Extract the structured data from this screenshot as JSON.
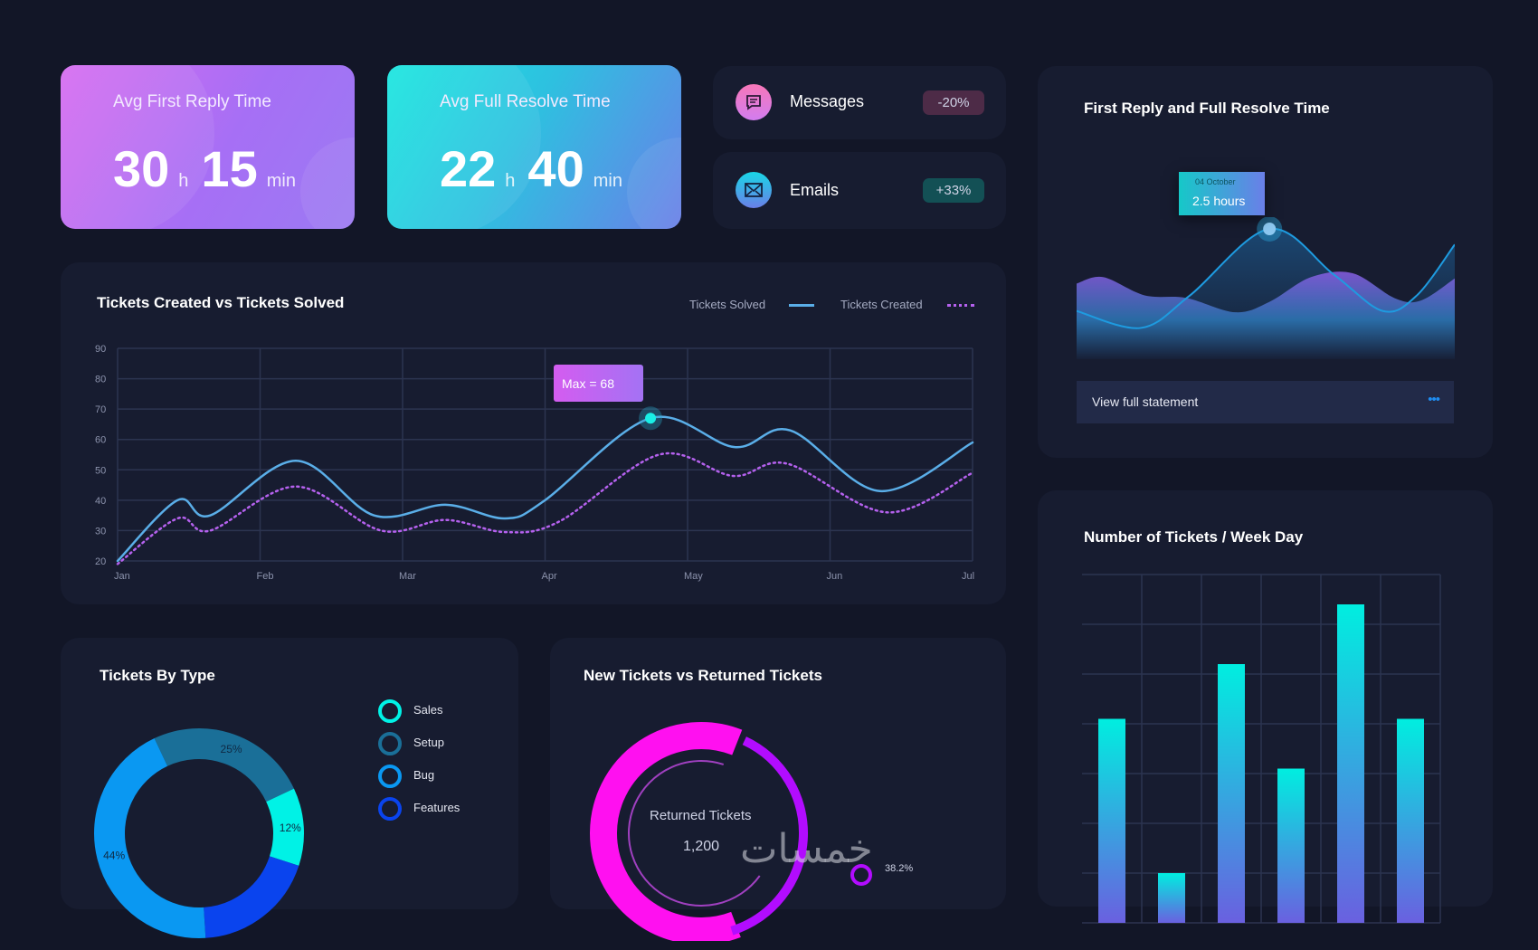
{
  "cards": {
    "first_reply": {
      "title": "Avg First Reply Time",
      "hours": "30",
      "h": "h",
      "minutes": "15",
      "min": "min"
    },
    "full_resolve": {
      "title": "Avg Full Resolve Time",
      "hours": "22",
      "h": "h",
      "minutes": "40",
      "min": "min"
    }
  },
  "mini": [
    {
      "label": "Messages",
      "change": "-20%",
      "icon": "message-icon",
      "color": "#f06fc0",
      "badge_bg": "#4d2b47"
    },
    {
      "label": "Emails",
      "change": "+33%",
      "icon": "mail-icon",
      "color": "#19c6e6",
      "badge_bg": "#135055"
    }
  ],
  "reply_resolve": {
    "title": "First Reply and Full Resolve Time",
    "tooltip_date": "04 October",
    "tooltip_value": "2.5 hours",
    "statement": "View full statement",
    "more": "•••"
  },
  "watermark": "خمسات",
  "chart_data": [
    {
      "type": "line",
      "title": "Tickets Created vs Tickets Solved",
      "xlabel": "",
      "ylabel": "",
      "categories": [
        "Jan",
        "Feb",
        "Mar",
        "Apr",
        "May",
        "Jun",
        "Jul"
      ],
      "yticks": [
        "90",
        "80",
        "70",
        "60",
        "50",
        "40",
        "30",
        "20"
      ],
      "ylim": [
        20,
        90
      ],
      "grid": true,
      "legend": "top-right",
      "annotation": "Max = 68",
      "series": [
        {
          "name": "Tickets Solved",
          "color": "#5aaee8",
          "style": "solid",
          "x": [
            0,
            0.42,
            0.65,
            1.25,
            1.8,
            2.3,
            2.72,
            3,
            3.74,
            4.33,
            4.72,
            5.35,
            6
          ],
          "y": [
            20,
            40,
            35,
            53,
            35,
            38.5,
            34,
            40,
            67,
            57.5,
            63,
            43,
            59
          ]
        },
        {
          "name": "Tickets Created",
          "color": "#b561ee",
          "style": "dotted",
          "x": [
            0,
            0.42,
            0.65,
            1.25,
            1.85,
            2.3,
            2.72,
            3.1,
            3.8,
            4.32,
            4.7,
            5.4,
            6
          ],
          "y": [
            19,
            34,
            30,
            44.5,
            30,
            33.5,
            29.5,
            33,
            55,
            48,
            52,
            36,
            49
          ]
        }
      ]
    },
    {
      "type": "area",
      "title": "First Reply and Full Resolve Time",
      "ylim": [
        0,
        100
      ],
      "series": [
        {
          "name": "Full Resolve",
          "color": "#1e9be0",
          "x": [
            0,
            0.17,
            0.3,
            0.51,
            0.68,
            0.81,
            0.9,
            1
          ],
          "y": [
            37,
            24,
            49,
            100,
            65,
            37,
            49,
            88
          ]
        },
        {
          "name": "First Reply",
          "color": "#8a5ee6",
          "x": [
            0,
            0.07,
            0.18,
            0.29,
            0.42,
            0.51,
            0.62,
            0.73,
            0.84,
            0.91,
            1
          ],
          "y": [
            58,
            63,
            49,
            47,
            36,
            44,
            63,
            66,
            47,
            45,
            62
          ]
        }
      ]
    },
    {
      "type": "bar",
      "title": "Number of Tickets / Week Day",
      "values": [
        4.1,
        1,
        5.2,
        3.1,
        6.4,
        4.1
      ],
      "ylim": [
        0,
        7
      ],
      "grid": true
    },
    {
      "type": "pie",
      "title": "Tickets By Type",
      "slices": [
        {
          "name": "Setup",
          "value": 25,
          "label": "25%",
          "color": "#1a6f98"
        },
        {
          "name": "Sales",
          "value": 12,
          "label": "12%",
          "color": "#00f2e6"
        },
        {
          "name": "Features",
          "value": 19,
          "label": "",
          "color": "#0a44ee"
        },
        {
          "name": "Bug",
          "value": 44,
          "label": "44%",
          "color": "#0a98f2"
        }
      ],
      "legend": [
        "Sales",
        "Setup",
        "Bug",
        "Features"
      ]
    },
    {
      "type": "pie",
      "title": "New Tickets vs Returned Tickets",
      "center_label": "Returned Tickets",
      "center_value": "1,200",
      "slices": [
        {
          "name": "New Tickets",
          "value": 61.8,
          "color": "#ff10f0"
        },
        {
          "name": "Returned Tickets",
          "value": 38.2,
          "label": "38.2%",
          "color": "#b20cff"
        }
      ]
    }
  ]
}
